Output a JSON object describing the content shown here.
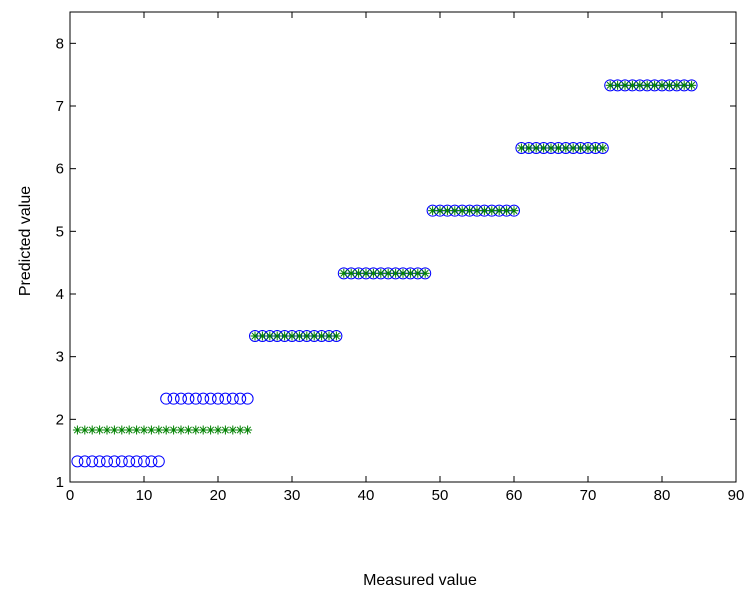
{
  "chart_data": {
    "type": "scatter",
    "xlabel": "Measured value",
    "ylabel": "Predicted value",
    "xlim": [
      0,
      90
    ],
    "ylim": [
      1,
      8.5
    ],
    "xticks": [
      "0",
      "10",
      "20",
      "30",
      "40",
      "50",
      "60",
      "70",
      "80",
      "90"
    ],
    "yticks": [
      "1",
      "2",
      "3",
      "4",
      "5",
      "6",
      "7",
      "8"
    ],
    "grid": false,
    "series": [
      {
        "marker": "circle",
        "color": "#0000ff",
        "segments": [
          {
            "x_start": 1,
            "x_end": 12,
            "y": 1.33
          },
          {
            "x_start": 13,
            "x_end": 24,
            "y": 2.33
          },
          {
            "x_start": 25,
            "x_end": 36,
            "y": 3.33
          },
          {
            "x_start": 37,
            "x_end": 48,
            "y": 4.33
          },
          {
            "x_start": 49,
            "x_end": 60,
            "y": 5.33
          },
          {
            "x_start": 61,
            "x_end": 72,
            "y": 6.33
          },
          {
            "x_start": 73,
            "x_end": 84,
            "y": 7.33
          }
        ]
      },
      {
        "marker": "asterisk",
        "color": "#008000",
        "segments": [
          {
            "x_start": 1,
            "x_end": 24,
            "y": 1.83
          },
          {
            "x_start": 25,
            "x_end": 36,
            "y": 3.33
          },
          {
            "x_start": 37,
            "x_end": 48,
            "y": 4.33
          },
          {
            "x_start": 49,
            "x_end": 60,
            "y": 5.33
          },
          {
            "x_start": 61,
            "x_end": 72,
            "y": 6.33
          },
          {
            "x_start": 73,
            "x_end": 84,
            "y": 7.33
          }
        ]
      }
    ]
  }
}
